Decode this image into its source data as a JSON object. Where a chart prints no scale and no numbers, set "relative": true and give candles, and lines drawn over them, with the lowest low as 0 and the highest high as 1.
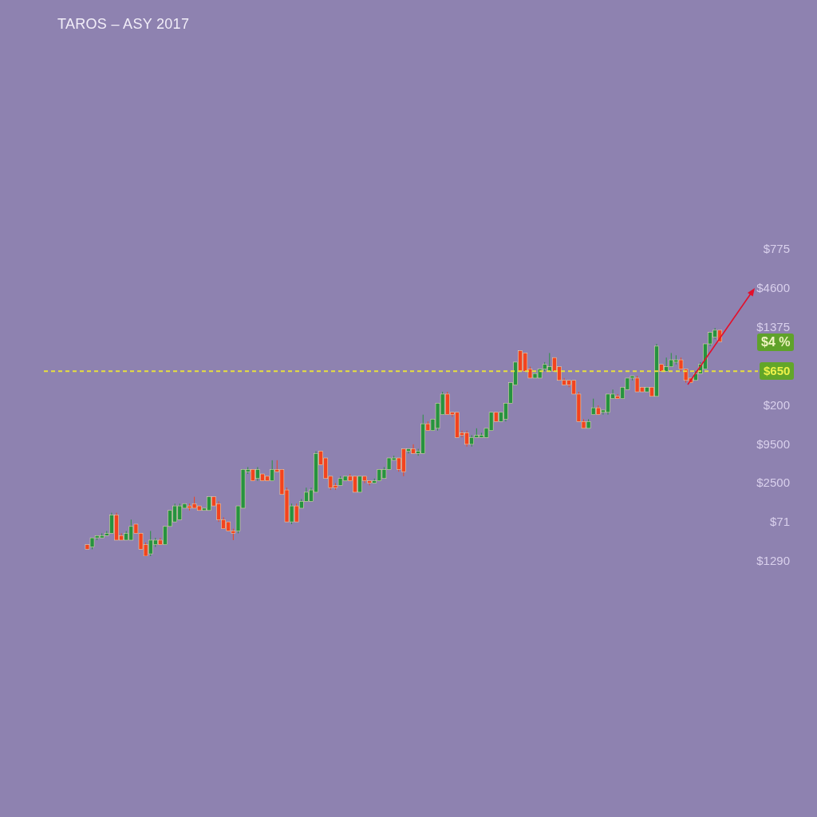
{
  "chart_data": {
    "type": "candlestick",
    "title": "TAROS – ASY 2017",
    "relative": true,
    "categories": [
      null,
      null,
      null,
      null,
      null,
      null,
      null,
      null,
      null,
      null,
      null,
      null,
      null,
      null,
      null,
      null,
      null,
      null,
      null,
      null,
      null,
      null,
      null,
      null,
      null,
      null,
      null,
      null,
      null,
      null,
      null,
      null,
      null,
      null,
      null,
      null,
      null,
      null,
      null,
      null,
      null,
      null,
      null,
      null,
      null,
      null,
      null,
      null,
      null,
      null,
      null,
      null,
      null,
      null,
      null,
      null,
      null,
      null,
      null,
      null,
      null,
      null,
      null,
      null,
      null,
      null,
      null,
      null,
      null,
      null,
      null,
      null,
      null,
      null,
      null,
      null,
      null,
      null,
      null,
      null,
      null,
      null,
      null,
      null,
      null,
      null,
      null,
      null,
      null,
      null,
      null,
      null,
      null,
      null,
      null,
      null,
      null,
      null,
      null,
      null,
      null,
      null,
      null,
      null,
      null,
      null,
      null,
      null,
      null,
      null,
      null,
      null,
      null,
      null,
      null,
      null,
      null,
      null,
      null,
      null,
      null,
      null,
      null,
      null,
      null,
      null,
      null,
      null,
      null,
      null,
      null
    ],
    "ohlc": [
      [
        0.05,
        0.05,
        0.03,
        0.03
      ],
      [
        0.04,
        0.08,
        0.03,
        0.08
      ],
      [
        0.08,
        0.09,
        0.07,
        0.09
      ],
      [
        0.08,
        0.1,
        0.08,
        0.09
      ],
      [
        0.09,
        0.11,
        0.09,
        0.1
      ],
      [
        0.1,
        0.19,
        0.1,
        0.18
      ],
      [
        0.18,
        0.19,
        0.07,
        0.07
      ],
      [
        0.09,
        0.1,
        0.07,
        0.07
      ],
      [
        0.07,
        0.11,
        0.07,
        0.1
      ],
      [
        0.07,
        0.16,
        0.07,
        0.13
      ],
      [
        0.14,
        0.14,
        0.1,
        0.1
      ],
      [
        0.1,
        0.1,
        0.03,
        0.03
      ],
      [
        0.05,
        0.06,
        0,
        0
      ],
      [
        0.01,
        0.11,
        0,
        0.07
      ],
      [
        0.05,
        0.08,
        0.04,
        0.07
      ],
      [
        0.07,
        0.08,
        0.05,
        0.05
      ],
      [
        0.05,
        0.13,
        0.05,
        0.13
      ],
      [
        0.13,
        0.2,
        0.13,
        0.2
      ],
      [
        0.15,
        0.23,
        0.15,
        0.22
      ],
      [
        0.16,
        0.23,
        0.16,
        0.22
      ],
      [
        0.21,
        0.23,
        0.21,
        0.23
      ],
      [
        0.22,
        0.23,
        0.2,
        0.21
      ],
      [
        0.23,
        0.26,
        0.21,
        0.21
      ],
      [
        0.22,
        0.22,
        0.2,
        0.2
      ],
      [
        0.2,
        0.21,
        0.2,
        0.21
      ],
      [
        0.2,
        0.26,
        0.2,
        0.26
      ],
      [
        0.26,
        0.26,
        0.22,
        0.22
      ],
      [
        0.23,
        0.24,
        0.15,
        0.16
      ],
      [
        0.16,
        0.17,
        0.12,
        0.12
      ],
      [
        0.15,
        0.15,
        0.11,
        0.11
      ],
      [
        0.11,
        0.12,
        0.07,
        0.1
      ],
      [
        0.11,
        0.22,
        0.1,
        0.22
      ],
      [
        0.21,
        0.38,
        0.21,
        0.38
      ],
      [
        0.37,
        0.39,
        0.36,
        0.38
      ],
      [
        0.38,
        0.38,
        0.33,
        0.33
      ],
      [
        0.34,
        0.39,
        0.33,
        0.38
      ],
      [
        0.36,
        0.36,
        0.33,
        0.33
      ],
      [
        0.35,
        0.35,
        0.33,
        0.33
      ],
      [
        0.33,
        0.42,
        0.33,
        0.38
      ],
      [
        0.38,
        0.42,
        0.37,
        0.37
      ],
      [
        0.38,
        0.38,
        0.27,
        0.27
      ],
      [
        0.29,
        0.3,
        0.15,
        0.15
      ],
      [
        0.15,
        0.23,
        0.14,
        0.22
      ],
      [
        0.22,
        0.23,
        0.15,
        0.15
      ],
      [
        0.21,
        0.25,
        0.21,
        0.24
      ],
      [
        0.24,
        0.3,
        0.24,
        0.28
      ],
      [
        0.24,
        0.3,
        0.24,
        0.29
      ],
      [
        0.28,
        0.46,
        0.28,
        0.45
      ],
      [
        0.46,
        0.46,
        0.4,
        0.4
      ],
      [
        0.43,
        0.43,
        0.34,
        0.34
      ],
      [
        0.35,
        0.35,
        0.29,
        0.3
      ],
      [
        0.31,
        0.32,
        0.29,
        0.3
      ],
      [
        0.31,
        0.35,
        0.31,
        0.34
      ],
      [
        0.33,
        0.35,
        0.33,
        0.35
      ],
      [
        0.35,
        0.36,
        0.33,
        0.33
      ],
      [
        0.35,
        0.35,
        0.28,
        0.28
      ],
      [
        0.28,
        0.35,
        0.28,
        0.35
      ],
      [
        0.35,
        0.35,
        0.32,
        0.33
      ],
      [
        0.33,
        0.33,
        0.31,
        0.32
      ],
      [
        0.32,
        0.34,
        0.32,
        0.33
      ],
      [
        0.33,
        0.38,
        0.33,
        0.38
      ],
      [
        0.34,
        0.39,
        0.34,
        0.38
      ],
      [
        0.38,
        0.43,
        0.38,
        0.43
      ],
      [
        0.42,
        0.44,
        0.42,
        0.43
      ],
      [
        0.43,
        0.43,
        0.37,
        0.38
      ],
      [
        0.47,
        0.47,
        0.35,
        0.37
      ],
      [
        0.46,
        0.47,
        0.45,
        0.47
      ],
      [
        0.47,
        0.49,
        0.45,
        0.45
      ],
      [
        0.45,
        0.47,
        0.44,
        0.46
      ],
      [
        0.45,
        0.62,
        0.45,
        0.58
      ],
      [
        0.58,
        0.59,
        0.55,
        0.55
      ],
      [
        0.55,
        0.6,
        0.55,
        0.6
      ],
      [
        0.56,
        0.67,
        0.55,
        0.67
      ],
      [
        0.62,
        0.72,
        0.62,
        0.71
      ],
      [
        0.71,
        0.72,
        0.62,
        0.62
      ],
      [
        0.63,
        0.63,
        0.61,
        0.62
      ],
      [
        0.63,
        0.63,
        0.52,
        0.52
      ],
      [
        0.54,
        0.55,
        0.52,
        0.53
      ],
      [
        0.54,
        0.55,
        0.48,
        0.49
      ],
      [
        0.49,
        0.53,
        0.48,
        0.52
      ],
      [
        0.52,
        0.56,
        0.52,
        0.53
      ],
      [
        0.52,
        0.54,
        0.52,
        0.53
      ],
      [
        0.52,
        0.56,
        0.52,
        0.56
      ],
      [
        0.55,
        0.63,
        0.55,
        0.63
      ],
      [
        0.63,
        0.63,
        0.59,
        0.59
      ],
      [
        0.59,
        0.63,
        0.59,
        0.63
      ],
      [
        0.6,
        0.67,
        0.59,
        0.67
      ],
      [
        0.67,
        0.76,
        0.67,
        0.76
      ],
      [
        0.75,
        0.85,
        0.75,
        0.85
      ],
      [
        0.9,
        0.9,
        0.81,
        0.81
      ],
      [
        0.89,
        0.89,
        0.81,
        0.81
      ],
      [
        0.82,
        0.83,
        0.78,
        0.78
      ],
      [
        0.78,
        0.8,
        0.78,
        0.8
      ],
      [
        0.78,
        0.82,
        0.78,
        0.82
      ],
      [
        0.82,
        0.85,
        0.81,
        0.84
      ],
      [
        0.81,
        0.89,
        0.81,
        0.83
      ],
      [
        0.87,
        0.87,
        0.81,
        0.81
      ],
      [
        0.83,
        0.83,
        0.77,
        0.77
      ],
      [
        0.77,
        0.78,
        0.75,
        0.75
      ],
      [
        0.77,
        0.77,
        0.74,
        0.75
      ],
      [
        0.77,
        0.77,
        0.71,
        0.71
      ],
      [
        0.71,
        0.72,
        0.59,
        0.59
      ],
      [
        0.59,
        0.6,
        0.56,
        0.56
      ],
      [
        0.56,
        0.6,
        0.56,
        0.59
      ],
      [
        0.62,
        0.69,
        0.62,
        0.65
      ],
      [
        0.65,
        0.66,
        0.62,
        0.62
      ],
      [
        0.63,
        0.64,
        0.62,
        0.64
      ],
      [
        0.63,
        0.71,
        0.62,
        0.71
      ],
      [
        0.69,
        0.73,
        0.69,
        0.71
      ],
      [
        0.7,
        0.71,
        0.69,
        0.69
      ],
      [
        0.69,
        0.74,
        0.69,
        0.74
      ],
      [
        0.73,
        0.78,
        0.73,
        0.78
      ],
      [
        0.78,
        0.79,
        0.77,
        0.79
      ],
      [
        0.78,
        0.79,
        0.72,
        0.72
      ],
      [
        0.74,
        0.74,
        0.72,
        0.72
      ],
      [
        0.72,
        0.74,
        0.72,
        0.74
      ],
      [
        0.74,
        0.74,
        0.7,
        0.7
      ],
      [
        0.7,
        0.93,
        0.7,
        0.92
      ],
      [
        0.84,
        0.84,
        0.81,
        0.81
      ],
      [
        0.81,
        0.87,
        0.81,
        0.83
      ],
      [
        0.83,
        0.89,
        0.83,
        0.86
      ],
      [
        0.85,
        0.88,
        0.84,
        0.86
      ],
      [
        0.86,
        0.87,
        0.81,
        0.82
      ],
      [
        0.82,
        0.82,
        0.76,
        0.77
      ],
      [
        0.78,
        0.78,
        0.76,
        0.76
      ],
      [
        0.77,
        0.81,
        0.77,
        0.8
      ],
      [
        0.8,
        0.85,
        0.8,
        0.84
      ],
      [
        0.82,
        0.93,
        0.82,
        0.93
      ],
      [
        0.93,
        0.98,
        0.92,
        0.98
      ],
      [
        0.96,
        1,
        0.95,
        0.99
      ],
      [
        0.99,
        0.99,
        0.94,
        0.94
      ]
    ],
    "colors": [
      "#f3431e",
      "#26933f",
      "#26933f",
      "#26933f",
      "#26933f",
      "#26933f",
      "#f3431e",
      "#f3431e",
      "#26933f",
      "#26933f",
      "#f3431e",
      "#f3431e",
      "#f3431e",
      "#26933f",
      "#26933f",
      "#f3431e",
      "#26933f",
      "#26933f",
      "#26933f",
      "#26933f",
      "#26933f",
      "#f3431e",
      "#f3431e",
      "#f3431e",
      "#26933f",
      "#26933f",
      "#f3431e",
      "#f3431e",
      "#f3431e",
      "#f3431e",
      "#f3431e",
      "#26933f",
      "#26933f",
      "#26933f",
      "#f3431e",
      "#26933f",
      "#f3431e",
      "#f3431e",
      "#26933f",
      "#f3431e",
      "#f3431e",
      "#f3431e",
      "#26933f",
      "#f3431e",
      "#26933f",
      "#26933f",
      "#26933f",
      "#26933f",
      "#f3431e",
      "#f3431e",
      "#f3431e",
      "#f3431e",
      "#26933f",
      "#26933f",
      "#f3431e",
      "#f3431e",
      "#26933f",
      "#f3431e",
      "#f3431e",
      "#26933f",
      "#26933f",
      "#26933f",
      "#26933f",
      "#26933f",
      "#f3431e",
      "#f3431e",
      "#26933f",
      "#f3431e",
      "#26933f",
      "#26933f",
      "#f3431e",
      "#26933f",
      "#26933f",
      "#26933f",
      "#f3431e",
      "#f3431e",
      "#f3431e",
      "#f3431e",
      "#f3431e",
      "#26933f",
      "#26933f",
      "#26933f",
      "#26933f",
      "#26933f",
      "#f3431e",
      "#26933f",
      "#26933f",
      "#26933f",
      "#26933f",
      "#f3431e",
      "#f3431e",
      "#f3431e",
      "#26933f",
      "#26933f",
      "#26933f",
      "#26933f",
      "#f3431e",
      "#f3431e",
      "#f3431e",
      "#f3431e",
      "#f3431e",
      "#f3431e",
      "#f3431e",
      "#26933f",
      "#26933f",
      "#f3431e",
      "#26933f",
      "#26933f",
      "#26933f",
      "#f3431e",
      "#26933f",
      "#26933f",
      "#26933f",
      "#f3431e",
      "#f3431e",
      "#26933f",
      "#f3431e",
      "#26933f",
      "#f3431e",
      "#26933f",
      "#26933f",
      "#26933f",
      "#f3431e",
      "#f3431e",
      "#f3431e",
      "#26933f",
      "#26933f",
      "#26933f",
      "#26933f",
      "#26933f",
      "#f3431e"
    ],
    "ref_lines": [
      {
        "axis": "y",
        "value": 0.81,
        "color": "#e8e03c",
        "line_style": "dashed"
      }
    ],
    "annotations": [
      "$775",
      "$4600",
      "$1375",
      "$4 %",
      "$650",
      "$200",
      "$9500",
      "$2500",
      "$71",
      "$1290"
    ]
  }
}
